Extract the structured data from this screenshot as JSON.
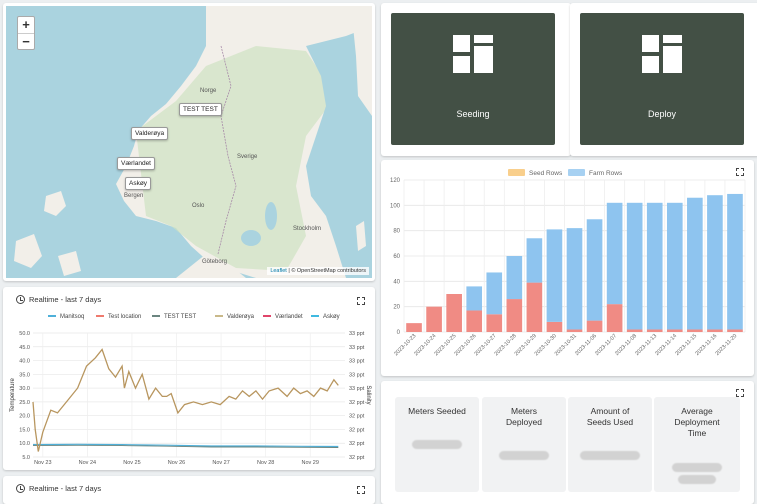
{
  "map": {
    "zoom_in": "+",
    "zoom_out": "−",
    "markers": [
      "TEST TEST",
      "Valderøya",
      "Værlandet",
      "Askøy"
    ],
    "labels": [
      "Norge",
      "Sverige",
      "Bergen",
      "Oslo",
      "Stockholm",
      "Göteborg"
    ],
    "attribution_link": "Leaflet",
    "attribution_text": " | © OpenStreetMap contributors"
  },
  "tiles": {
    "seeding_label": "Seeding",
    "deploy_label": "Deploy",
    "color": "#435045"
  },
  "chart_data": [
    {
      "type": "bar",
      "stacked": true,
      "legend_position": "top",
      "categories": [
        "2023-10-23",
        "2023-10-24",
        "2023-10-25",
        "2023-10-26",
        "2023-10-27",
        "2023-10-28",
        "2023-10-29",
        "2023-10-30",
        "2023-10-31",
        "2023-11-06",
        "2023-11-07",
        "2023-11-08",
        "2023-11-13",
        "2023-11-14",
        "2023-11-15",
        "2023-11-16",
        "2023-11-20"
      ],
      "series": [
        {
          "name": "Seed Rows",
          "color": "#f08b84",
          "values": [
            7,
            20,
            30,
            17,
            14,
            26,
            39,
            8,
            2,
            9,
            22,
            2,
            2,
            2,
            2,
            2,
            2
          ]
        },
        {
          "name": "Farm Rows",
          "color": "#8ec4ef",
          "values": [
            0,
            0,
            0,
            19,
            33,
            34,
            35,
            73,
            80,
            80,
            80,
            100,
            100,
            100,
            104,
            106,
            107
          ]
        }
      ],
      "legend": [
        "Seed Rows",
        "Farm Rows"
      ],
      "legend_colors": [
        "#f9cf8c",
        "#a7d1f2"
      ],
      "ylim": [
        0,
        120
      ],
      "yticks": [
        0,
        20,
        40,
        60,
        80,
        100,
        120
      ],
      "grid": true
    },
    {
      "type": "line",
      "title": "Realtime - last 7 days",
      "ylabel": "Temperature",
      "y2label": "Salinity",
      "xticks": [
        "Nov 23",
        "Nov 24",
        "Nov 25",
        "Nov 26",
        "Nov 27",
        "Nov 28",
        "Nov 29"
      ],
      "ylim": [
        5,
        50
      ],
      "yticks": [
        "5.0",
        "10.0",
        "15.0",
        "20.0",
        "25.0",
        "30.0",
        "35.0",
        "40.0",
        "45.0",
        "50.0"
      ],
      "y2lim": [
        32,
        33
      ],
      "y2ticks": [
        "32 ppt",
        "32 ppt",
        "32 ppt",
        "32 ppt",
        "32 ppt",
        "33 ppt",
        "33 ppt",
        "33 ppt",
        "33 ppt",
        "33 ppt"
      ],
      "grid": true,
      "legend_position": "top",
      "series": [
        {
          "name": "Manitsoq",
          "color": "#4fb0d9"
        },
        {
          "name": "Test location",
          "color": "#ef7a6e"
        },
        {
          "name": "TEST TEST",
          "color": "#6b8580"
        },
        {
          "name": "Valderøya",
          "color": "#c9b98a"
        },
        {
          "name": "Værlandet",
          "color": "#e0456a"
        },
        {
          "name": "Askøy",
          "color": "#3fb9e0"
        }
      ],
      "temperature_series": {
        "name": "Valderøya",
        "x": [
          0,
          0.05,
          0.12,
          0.22,
          0.4,
          0.55,
          0.8,
          1.0,
          1.2,
          1.4,
          1.55,
          1.7,
          1.85,
          2.0,
          2.05,
          2.15,
          2.3,
          2.45,
          2.6,
          2.75,
          2.9,
          3.0,
          3.1,
          3.25,
          3.4,
          3.6,
          3.8,
          4.0,
          4.2,
          4.4,
          4.55,
          4.7,
          4.85,
          5.0,
          5.15,
          5.3,
          5.5,
          5.7,
          5.85,
          6.0,
          6.15,
          6.3,
          6.45,
          6.6,
          6.75,
          6.85
        ],
        "y": [
          25,
          15,
          7,
          14,
          22,
          21,
          26,
          30,
          38,
          41,
          44,
          37,
          34,
          38,
          30,
          36,
          30,
          35,
          26,
          30,
          27,
          27,
          28,
          21,
          24,
          25,
          24,
          25,
          24,
          27,
          26,
          29,
          27,
          29,
          26,
          29,
          30,
          27,
          30,
          28,
          29,
          27,
          30,
          29,
          33,
          31
        ]
      },
      "salinity_series": {
        "name": "Manitsoq",
        "x": [
          0,
          1,
          2,
          3,
          4,
          5,
          6,
          6.85
        ],
        "y": [
          9.5,
          9.6,
          9.5,
          9.3,
          9.0,
          9.0,
          8.9,
          8.8
        ]
      }
    }
  ],
  "realtime1": {
    "title": "Realtime - last 7 days"
  },
  "realtime2": {
    "title": "Realtime - last 7 days"
  },
  "stats": {
    "items": [
      {
        "label": "Meters Seeded"
      },
      {
        "label": "Meters Deployed"
      },
      {
        "label": "Amount of Seeds Used"
      },
      {
        "label": "Average Deployment Time"
      }
    ]
  }
}
